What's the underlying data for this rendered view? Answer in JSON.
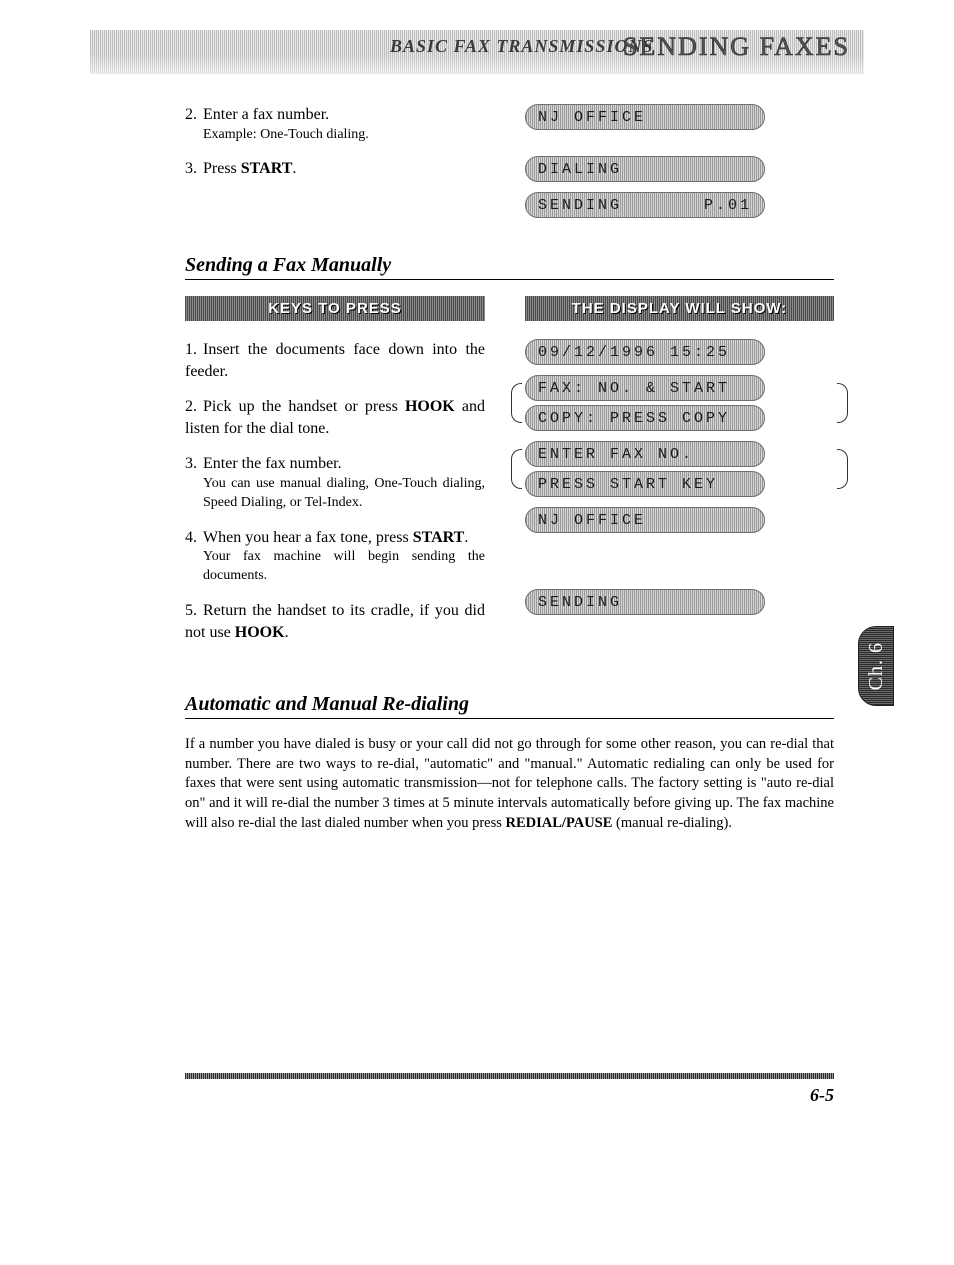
{
  "header": {
    "italic_title": "BASIC FAX TRANSMISSIONS",
    "outline_title": "SENDING FAXES"
  },
  "top_section": {
    "steps": [
      {
        "num": "2.",
        "text": "Enter a fax number.",
        "sub": "Example: One-Touch dialing."
      },
      {
        "num": "3.",
        "text_pre": "Press ",
        "text_bold": "START",
        "text_post": "."
      }
    ],
    "displays": {
      "nj_office": "NJ OFFICE",
      "dialing": "DIALING",
      "sending_left": "SENDING",
      "sending_right": "P.01"
    }
  },
  "section_manual": {
    "heading": "Sending a Fax Manually",
    "col_left_header": "KEYS TO PRESS",
    "col_right_header": "THE DISPLAY WILL SHOW:",
    "steps": [
      {
        "num": "1.",
        "text": "Insert the documents face down into the feeder."
      },
      {
        "num": "2.",
        "pre": "Pick up the handset or press ",
        "bold": "HOOK",
        "post": " and listen for the dial tone."
      },
      {
        "num": "3.",
        "text": "Enter the fax number.",
        "sub": "You can use manual dialing, One-Touch dialing, Speed Dialing, or Tel-Index."
      },
      {
        "num": "4.",
        "pre": "When you hear a fax tone, press ",
        "bold": "START",
        "post": ".",
        "sub": "Your fax machine will begin sending the documents."
      },
      {
        "num": "5.",
        "pre": "Return the handset to its cradle, if you did not use ",
        "bold": "HOOK",
        "post": "."
      }
    ],
    "displays": {
      "datetime": "09/12/1996 15:25",
      "pair1a": "FAX: NO. & START",
      "pair1b": "COPY: PRESS COPY",
      "pair2a": "ENTER FAX NO.",
      "pair2b": "PRESS START KEY",
      "nj_office": "NJ OFFICE",
      "sending": "SENDING"
    }
  },
  "section_redial": {
    "heading": "Automatic and Manual Re-dialing",
    "body_pre": "If a number you have dialed is busy or your call did not go through for some other reason, you can re-dial that number. There are two ways to re-dial, \"automatic\" and \"manual.\" Automatic redialing can only be used for faxes that were sent using automatic transmission—not for telephone calls. The factory setting is \"auto re-dial on\" and it will re-dial the number 3 times at 5 minute intervals automatically before giving up. The fax machine will also re-dial the last dialed number when you press ",
    "body_bold": "REDIAL/PAUSE",
    "body_post": " (manual re-dialing)."
  },
  "side_tab": "Ch. 6",
  "page_number": "6-5"
}
